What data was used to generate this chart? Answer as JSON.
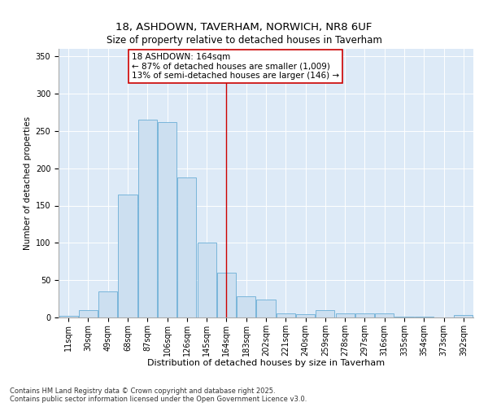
{
  "title": "18, ASHDOWN, TAVERHAM, NORWICH, NR8 6UF",
  "subtitle": "Size of property relative to detached houses in Taverham",
  "xlabel": "Distribution of detached houses by size in Taverham",
  "ylabel": "Number of detached properties",
  "bar_labels": [
    "11sqm",
    "30sqm",
    "49sqm",
    "68sqm",
    "87sqm",
    "106sqm",
    "126sqm",
    "145sqm",
    "164sqm",
    "183sqm",
    "202sqm",
    "221sqm",
    "240sqm",
    "259sqm",
    "278sqm",
    "297sqm",
    "316sqm",
    "335sqm",
    "354sqm",
    "373sqm",
    "392sqm"
  ],
  "bar_values": [
    2,
    10,
    35,
    165,
    265,
    262,
    188,
    100,
    60,
    28,
    24,
    5,
    4,
    10,
    6,
    5,
    5,
    1,
    1,
    0,
    3
  ],
  "bar_color": "#ccdff0",
  "bar_edge_color": "#6aaed6",
  "reference_line_x": 8,
  "reference_line_label": "18 ASHDOWN: 164sqm",
  "annotation_line1": "← 87% of detached houses are smaller (1,009)",
  "annotation_line2": "13% of semi-detached houses are larger (146) →",
  "annotation_box_color": "#ffffff",
  "annotation_box_edge": "#cc0000",
  "vline_color": "#cc0000",
  "ylim": [
    0,
    360
  ],
  "yticks": [
    0,
    50,
    100,
    150,
    200,
    250,
    300,
    350
  ],
  "background_color": "#ddeaf7",
  "footnote": "Contains HM Land Registry data © Crown copyright and database right 2025.\nContains public sector information licensed under the Open Government Licence v3.0.",
  "title_fontsize": 9.5,
  "subtitle_fontsize": 8.5,
  "xlabel_fontsize": 8,
  "ylabel_fontsize": 7.5,
  "tick_fontsize": 7,
  "annotation_fontsize": 7.5,
  "footnote_fontsize": 6
}
